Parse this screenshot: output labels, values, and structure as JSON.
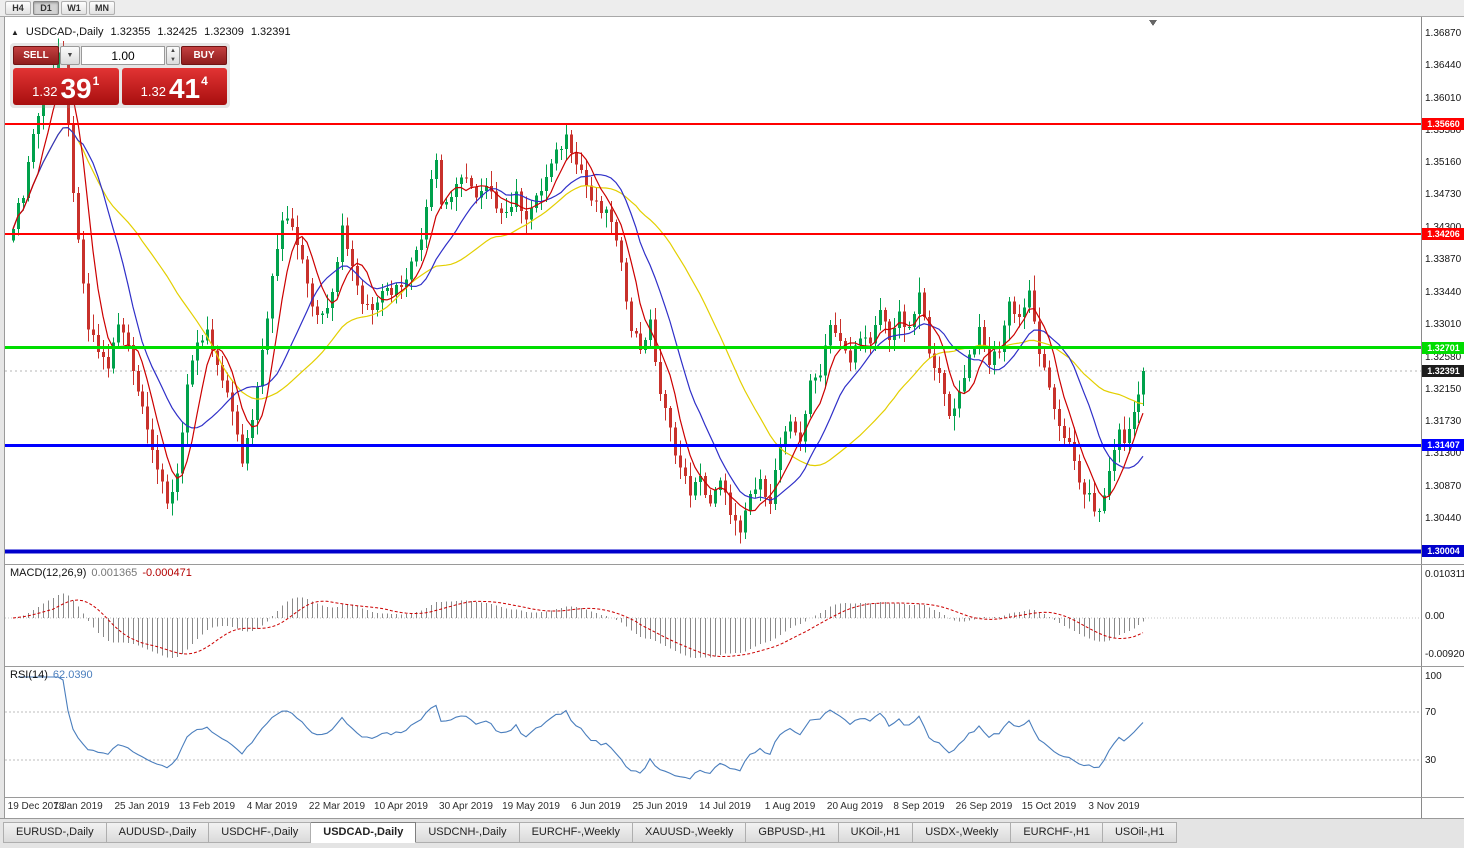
{
  "toolbar": {
    "timeframes": [
      "H4",
      "D1",
      "W1",
      "MN"
    ],
    "active_timeframe": "D1"
  },
  "chart_header": {
    "marker": "▲",
    "symbol_label": "USDCAD-,Daily",
    "open": "1.32355",
    "high": "1.32425",
    "low": "1.32309",
    "close": "1.32391"
  },
  "one_click": {
    "sell_label": "SELL",
    "buy_label": "BUY",
    "volume": "1.00",
    "sell_prefix": "1.32",
    "sell_big": "39",
    "sell_sup": "1",
    "buy_prefix": "1.32",
    "buy_big": "41",
    "buy_sup": "4"
  },
  "chart_data": {
    "type": "candlestick",
    "symbol": "USDCAD",
    "timeframe": "Daily",
    "ohlc_current": {
      "open": 1.32355,
      "high": 1.32425,
      "low": 1.32309,
      "close": 1.32391
    },
    "y_axis": {
      "min": 1.2985,
      "max": 1.3697,
      "labels": [
        "1.36870",
        "1.36440",
        "1.36010",
        "1.35580",
        "1.35160",
        "1.34730",
        "1.34300",
        "1.33870",
        "1.33440",
        "1.33010",
        "1.32580",
        "1.32150",
        "1.31730",
        "1.31300",
        "1.30870",
        "1.30440"
      ]
    },
    "x_axis": {
      "candle_count": 228,
      "date_ticks": [
        {
          "label": "19 Dec 2018",
          "index": 0
        },
        {
          "label": "7 Jan 2019",
          "index": 13
        },
        {
          "label": "25 Jan 2019",
          "index": 26
        },
        {
          "label": "13 Feb 2019",
          "index": 39
        },
        {
          "label": "4 Mar 2019",
          "index": 52
        },
        {
          "label": "22 Mar 2019",
          "index": 65
        },
        {
          "label": "10 Apr 2019",
          "index": 78
        },
        {
          "label": "30 Apr 2019",
          "index": 91
        },
        {
          "label": "19 May 2019",
          "index": 104
        },
        {
          "label": "6 Jun 2019",
          "index": 117
        },
        {
          "label": "25 Jun 2019",
          "index": 130
        },
        {
          "label": "14 Jul 2019",
          "index": 143
        },
        {
          "label": "1 Aug 2019",
          "index": 156
        },
        {
          "label": "20 Aug 2019",
          "index": 169
        },
        {
          "label": "8 Sep 2019",
          "index": 182
        },
        {
          "label": "26 Sep 2019",
          "index": 195
        },
        {
          "label": "15 Oct 2019",
          "index": 208
        },
        {
          "label": "3 Nov 2019",
          "index": 221
        }
      ]
    },
    "close_anchors": [
      [
        0,
        1.3435
      ],
      [
        2,
        1.3475
      ],
      [
        4,
        1.3555
      ],
      [
        6,
        1.36
      ],
      [
        8,
        1.364
      ],
      [
        9,
        1.366
      ],
      [
        10,
        1.3645
      ],
      [
        11,
        1.356
      ],
      [
        12,
        1.348
      ],
      [
        13,
        1.3405
      ],
      [
        15,
        1.3295
      ],
      [
        17,
        1.3265
      ],
      [
        19,
        1.3245
      ],
      [
        21,
        1.33
      ],
      [
        23,
        1.3275
      ],
      [
        25,
        1.3215
      ],
      [
        27,
        1.317
      ],
      [
        29,
        1.311
      ],
      [
        31,
        1.306
      ],
      [
        33,
        1.3105
      ],
      [
        35,
        1.322
      ],
      [
        37,
        1.327
      ],
      [
        39,
        1.329
      ],
      [
        41,
        1.324
      ],
      [
        43,
        1.3215
      ],
      [
        45,
        1.315
      ],
      [
        46,
        1.312
      ],
      [
        48,
        1.318
      ],
      [
        50,
        1.327
      ],
      [
        52,
        1.336
      ],
      [
        54,
        1.344
      ],
      [
        56,
        1.343
      ],
      [
        58,
        1.339
      ],
      [
        60,
        1.333
      ],
      [
        62,
        1.331
      ],
      [
        64,
        1.335
      ],
      [
        66,
        1.343
      ],
      [
        68,
        1.338
      ],
      [
        70,
        1.333
      ],
      [
        72,
        1.3325
      ],
      [
        74,
        1.335
      ],
      [
        76,
        1.3345
      ],
      [
        78,
        1.3355
      ],
      [
        80,
        1.338
      ],
      [
        82,
        1.342
      ],
      [
        84,
        1.35
      ],
      [
        85,
        1.352
      ],
      [
        86,
        1.346
      ],
      [
        88,
        1.347
      ],
      [
        90,
        1.349
      ],
      [
        91,
        1.35
      ],
      [
        93,
        1.3465
      ],
      [
        95,
        1.348
      ],
      [
        97,
        1.346
      ],
      [
        99,
        1.345
      ],
      [
        101,
        1.347
      ],
      [
        103,
        1.3445
      ],
      [
        105,
        1.3465
      ],
      [
        107,
        1.3495
      ],
      [
        109,
        1.3525
      ],
      [
        111,
        1.355
      ],
      [
        112,
        1.3535
      ],
      [
        114,
        1.3505
      ],
      [
        116,
        1.3465
      ],
      [
        118,
        1.345
      ],
      [
        120,
        1.344
      ],
      [
        122,
        1.3375
      ],
      [
        124,
        1.33
      ],
      [
        126,
        1.327
      ],
      [
        128,
        1.33
      ],
      [
        130,
        1.321
      ],
      [
        132,
        1.316
      ],
      [
        134,
        1.311
      ],
      [
        136,
        1.308
      ],
      [
        138,
        1.3095
      ],
      [
        140,
        1.3065
      ],
      [
        142,
        1.309
      ],
      [
        144,
        1.3055
      ],
      [
        146,
        1.302
      ],
      [
        148,
        1.3075
      ],
      [
        150,
        1.309
      ],
      [
        152,
        1.307
      ],
      [
        154,
        1.314
      ],
      [
        156,
        1.3165
      ],
      [
        158,
        1.315
      ],
      [
        160,
        1.322
      ],
      [
        162,
        1.324
      ],
      [
        164,
        1.3305
      ],
      [
        166,
        1.3275
      ],
      [
        168,
        1.325
      ],
      [
        170,
        1.329
      ],
      [
        172,
        1.327
      ],
      [
        174,
        1.332
      ],
      [
        176,
        1.3285
      ],
      [
        178,
        1.331
      ],
      [
        180,
        1.329
      ],
      [
        182,
        1.334
      ],
      [
        184,
        1.327
      ],
      [
        186,
        1.323
      ],
      [
        188,
        1.318
      ],
      [
        190,
        1.321
      ],
      [
        192,
        1.326
      ],
      [
        194,
        1.329
      ],
      [
        196,
        1.325
      ],
      [
        198,
        1.327
      ],
      [
        200,
        1.333
      ],
      [
        202,
        1.331
      ],
      [
        204,
        1.334
      ],
      [
        206,
        1.3265
      ],
      [
        208,
        1.321
      ],
      [
        210,
        1.317
      ],
      [
        212,
        1.314
      ],
      [
        214,
        1.309
      ],
      [
        216,
        1.307
      ],
      [
        218,
        1.3048
      ],
      [
        220,
        1.3105
      ],
      [
        222,
        1.3165
      ],
      [
        223,
        1.314
      ],
      [
        225,
        1.3185
      ],
      [
        226,
        1.3215
      ],
      [
        227,
        1.3239
      ]
    ],
    "levels": [
      {
        "price": 1.3566,
        "label": "1.35660",
        "color": "#ff0000",
        "width": 2
      },
      {
        "price": 1.34206,
        "label": "1.34206",
        "color": "#ff0000",
        "width": 2
      },
      {
        "price": 1.32701,
        "label": "1.32701",
        "color": "#00dd00",
        "width": 3
      },
      {
        "price": 1.31407,
        "label": "1.31407",
        "color": "#0000ff",
        "width": 3
      },
      {
        "price": 1.30004,
        "label": "1.30004",
        "color": "#0000cc",
        "width": 4
      }
    ],
    "bid": {
      "price": 1.32391,
      "label": "1.32391",
      "tag_color": "#1c1c1c"
    },
    "candle_colors": {
      "up": "#00a14b",
      "down": "#c8312b"
    },
    "moving_averages": [
      {
        "name": "slow-ma",
        "period": 32,
        "color": "#e3cf00"
      },
      {
        "name": "mid-ma",
        "period": 14,
        "color": "#2f2fc8"
      },
      {
        "name": "fast-ma",
        "period": 6,
        "color": "#cc0000"
      }
    ],
    "indicators": {
      "macd": {
        "name": "MACD(12,26,9)",
        "value_main": "0.001365",
        "value_signal": "-0.000471",
        "scale_labels": [
          "0.010311",
          "0.00",
          "-0.009203"
        ],
        "hist_color": "#8a8a8a",
        "signal_color": "#cc0000"
      },
      "rsi": {
        "name": "RSI(14)",
        "value": "62.0390",
        "scale_labels": [
          "100",
          "70",
          "30"
        ],
        "levels": [
          70,
          30
        ],
        "line_color": "#4a7ebd"
      }
    }
  },
  "window_tabs": [
    {
      "label": "EURUSD-,Daily",
      "active": false
    },
    {
      "label": "AUDUSD-,Daily",
      "active": false
    },
    {
      "label": "USDCHF-,Daily",
      "active": false
    },
    {
      "label": "USDCAD-,Daily",
      "active": true
    },
    {
      "label": "USDCNH-,Daily",
      "active": false
    },
    {
      "label": "EURCHF-,Weekly",
      "active": false
    },
    {
      "label": "XAUUSD-,Weekly",
      "active": false
    },
    {
      "label": "GBPUSD-,H1",
      "active": false
    },
    {
      "label": "UKOil-,H1",
      "active": false
    },
    {
      "label": "USDX-,Weekly",
      "active": false
    },
    {
      "label": "EURCHF-,H1",
      "active": false
    },
    {
      "label": "USOil-,H1",
      "active": false
    }
  ]
}
